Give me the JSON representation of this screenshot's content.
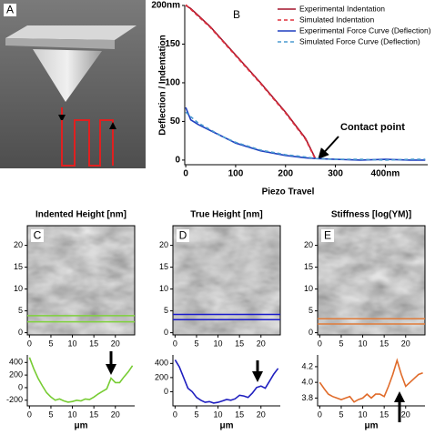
{
  "chart_data": [
    {
      "type": "image",
      "label": "A"
    },
    {
      "type": "line",
      "label": "B",
      "x_label": "Piezo Travel",
      "y_label": "Deflection / Indentation",
      "x": [
        0,
        10,
        25,
        50,
        75,
        100,
        150,
        200,
        240,
        260,
        300,
        350,
        400,
        450,
        480
      ],
      "series": [
        {
          "name": "Experimental Indentation",
          "color": "#a3142c",
          "style": "solid",
          "values": [
            200,
            196,
            187,
            172,
            154,
            136,
            100,
            62,
            28,
            2,
            null,
            null,
            null,
            null,
            null
          ]
        },
        {
          "name": "Simulated Indentation",
          "color": "#e0303c",
          "style": "dashed",
          "values": [
            201,
            195,
            186,
            171,
            153,
            135,
            99,
            61,
            27,
            1,
            null,
            null,
            null,
            null,
            null
          ]
        },
        {
          "name": "Experimental Force Curve (Deflection)",
          "color": "#1f3fbf",
          "style": "solid",
          "values": [
            68,
            52,
            46,
            38,
            30,
            22,
            12,
            6,
            3,
            2,
            1,
            0,
            1,
            0,
            0
          ]
        },
        {
          "name": "Simulated Force Curve (Deflection)",
          "color": "#4a9ad0",
          "style": "dashed",
          "values": [
            62,
            56,
            48,
            39,
            30,
            23,
            13,
            7,
            4,
            2,
            1,
            1,
            0,
            1,
            1
          ]
        }
      ],
      "xlim": [
        -2,
        485
      ],
      "xticks": [
        0,
        100,
        200,
        300,
        {
          "value": 400,
          "label": "400nm"
        }
      ],
      "ylim": [
        -6,
        200
      ],
      "yticks": [
        0,
        50,
        100,
        150,
        {
          "value": 200,
          "label": "200nm"
        }
      ],
      "legend": "upper right",
      "annotation": "Contact point"
    },
    {
      "type": "image",
      "label": "C",
      "title": "Indented Height [nm]",
      "xlim": [
        -0.5,
        24.5
      ],
      "ylim": [
        -0.5,
        24.5
      ],
      "xticks": [
        0,
        5,
        10,
        15,
        20
      ],
      "yticks": [
        0,
        5,
        10,
        15,
        20
      ],
      "hlines": [
        2.5,
        3.9
      ],
      "hline_color": "#7fd13b"
    },
    {
      "type": "image",
      "label": "D",
      "title": "True Height [nm]",
      "xlim": [
        -0.5,
        24.5
      ],
      "ylim": [
        -0.5,
        24.5
      ],
      "xticks": [
        0,
        5,
        10,
        15,
        20
      ],
      "yticks": [
        0,
        5,
        10,
        15,
        20
      ],
      "hlines": [
        3,
        4.2
      ],
      "hline_color": "#1a1acc"
    },
    {
      "type": "image",
      "label": "E",
      "title": "Stiffness [log(YM)]",
      "xlim": [
        -0.5,
        24.5
      ],
      "ylim": [
        -0.5,
        24.5
      ],
      "xticks": [
        0,
        5,
        10,
        15,
        20
      ],
      "yticks": [
        0,
        5,
        10,
        15,
        20
      ],
      "hlines": [
        2,
        3.2
      ],
      "hline_color": "#e07b39"
    },
    {
      "type": "line",
      "x_label": "μm",
      "x": [
        0,
        1,
        2,
        3,
        4,
        5,
        6,
        7,
        8,
        9,
        10,
        11,
        12,
        13,
        14,
        15,
        16,
        17,
        18,
        19,
        20,
        21,
        22,
        23,
        24
      ],
      "series": [
        {
          "color": "#77cc33",
          "style": "solid",
          "values": [
            480,
            300,
            150,
            30,
            -80,
            -150,
            -200,
            -180,
            -210,
            -230,
            -220,
            -200,
            -210,
            -180,
            -190,
            -150,
            -100,
            -60,
            -20,
            150,
            80,
            80,
            170,
            250,
            350
          ]
        }
      ],
      "xlim": [
        -0.5,
        24.5
      ],
      "xticks": [
        0,
        5,
        10,
        15,
        20
      ],
      "ylim": [
        -290,
        520
      ],
      "yticks": [
        -200,
        0,
        200,
        400
      ]
    },
    {
      "type": "line",
      "x_label": "μm",
      "x": [
        0,
        1,
        2,
        3,
        4,
        5,
        6,
        7,
        8,
        9,
        10,
        11,
        12,
        13,
        14,
        15,
        16,
        17,
        18,
        19,
        20,
        21,
        22,
        23,
        24
      ],
      "series": [
        {
          "color": "#1f1fbf",
          "style": "solid",
          "values": [
            450,
            350,
            200,
            50,
            0,
            -80,
            -120,
            -150,
            -140,
            -160,
            -150,
            -130,
            -110,
            -120,
            -100,
            -50,
            -60,
            -80,
            -20,
            60,
            80,
            50,
            150,
            250,
            330
          ]
        }
      ],
      "xlim": [
        -0.5,
        24.5
      ],
      "xticks": [
        0,
        5,
        10,
        15,
        20
      ],
      "ylim": [
        -200,
        520
      ],
      "yticks": [
        0,
        200,
        400
      ]
    },
    {
      "type": "line",
      "x_label": "μm",
      "x": [
        0,
        1,
        2,
        3,
        4,
        5,
        6,
        7,
        8,
        9,
        10,
        11,
        12,
        13,
        14,
        15,
        16,
        17,
        18,
        19,
        20,
        21,
        22,
        23,
        24
      ],
      "series": [
        {
          "color": "#e06b2a",
          "style": "solid",
          "values": [
            4.0,
            3.92,
            3.85,
            3.82,
            3.8,
            3.78,
            3.8,
            3.82,
            3.75,
            3.78,
            3.8,
            3.85,
            3.8,
            3.85,
            3.85,
            3.82,
            3.95,
            4.1,
            4.28,
            4.1,
            3.95,
            4.0,
            4.05,
            4.1,
            4.12
          ]
        }
      ],
      "xlim": [
        -0.5,
        24.5
      ],
      "xticks": [
        0,
        5,
        10,
        15,
        20
      ],
      "ylim": [
        3.7,
        4.35
      ],
      "yticks": [
        {
          "value": 3.8,
          "label": "3.8"
        },
        {
          "value": 4,
          "label": "4.0"
        },
        {
          "value": 4.2,
          "label": "4.2"
        }
      ]
    }
  ]
}
